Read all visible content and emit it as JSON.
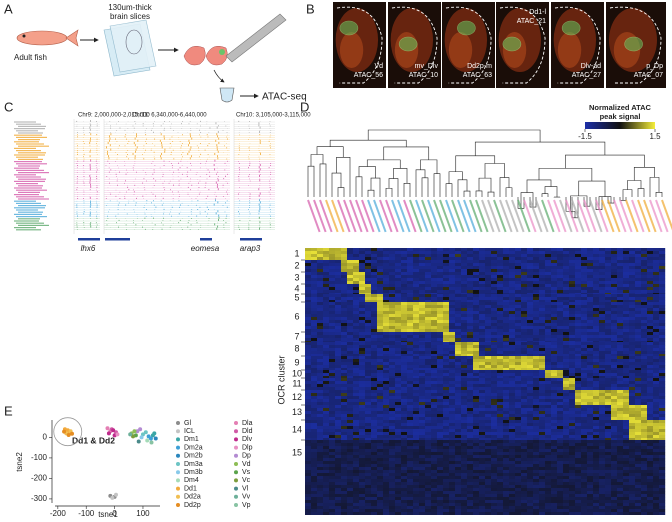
{
  "panel_labels": [
    "A",
    "B",
    "C",
    "D",
    "E"
  ],
  "panel_a": {
    "organism": "Adult fish",
    "slices": [
      "130um-thick",
      "brain slices"
    ],
    "assay": "ATAC-seq"
  },
  "panel_b": {
    "images": [
      {
        "region": "Vd",
        "sample": "ATAC_56"
      },
      {
        "region": "mv_Dlv",
        "sample": "ATAC_10"
      },
      {
        "region": "Dd2p-m",
        "sample": "ATAC_63"
      },
      {
        "region": "Dd1-l",
        "sample": "ATAC_21"
      },
      {
        "region": "Dlv-ad",
        "sample": "ATAC_27"
      },
      {
        "region": "p_Dp",
        "sample": "ATAC_07"
      }
    ]
  },
  "panel_c": {
    "loci": [
      "Chr9: 2,000,000-2,015,000",
      "Chr11: 6,340,000-6,440,000",
      "Chr10: 3,105,000-3,115,000"
    ],
    "genes": [
      "lhx6",
      "eomesa",
      "arap3"
    ]
  },
  "panel_d": {
    "colorbar_title": [
      "Normalized ATAC",
      "peak signal"
    ],
    "colorbar_range": [
      -1.5,
      1.5
    ],
    "colorbar_ticks": [
      -1.5,
      1.5
    ],
    "y_label": "OCR cluster",
    "clusters": [
      1,
      2,
      3,
      4,
      5,
      6,
      7,
      8,
      9,
      10,
      11,
      12,
      13,
      14,
      15
    ]
  },
  "chart_data": {
    "type": "scatter",
    "x_label": "tsne1",
    "y_label": "tsne2",
    "annotation": "Dd1 & Dd2",
    "xlim": [
      -210,
      160
    ],
    "ylim": [
      -320,
      85
    ],
    "xticks": [
      -200,
      -100,
      0,
      100
    ],
    "yticks": [
      0,
      -100,
      -200,
      -300
    ],
    "series": [
      {
        "name": "Gl",
        "color": "#8c8c8c",
        "x": [
          -15,
          0
        ],
        "y": [
          -285,
          -290
        ]
      },
      {
        "name": "ICL",
        "color": "#c4c4c4",
        "x": [
          5,
          -8
        ],
        "y": [
          -280,
          -295
        ]
      },
      {
        "name": "Dm1",
        "color": "#3aa6a6",
        "x": [
          140,
          135
        ],
        "y": [
          20,
          10
        ]
      },
      {
        "name": "Dm2a",
        "color": "#3d9fd6",
        "x": [
          120,
          128
        ],
        "y": [
          5,
          -5
        ]
      },
      {
        "name": "Dm2b",
        "color": "#2a86bd",
        "x": [
          145
        ],
        "y": [
          -5
        ]
      },
      {
        "name": "Dm3a",
        "color": "#6cc4c4",
        "x": [
          110,
          100
        ],
        "y": [
          25,
          15
        ]
      },
      {
        "name": "Dm3b",
        "color": "#88c9ea",
        "x": [
          95
        ],
        "y": [
          0
        ]
      },
      {
        "name": "Dm4",
        "color": "#a5dbb8",
        "x": [
          115
        ],
        "y": [
          -15
        ]
      },
      {
        "name": "Dd1",
        "color": "#f2a93b",
        "x": [
          -175,
          -165,
          -160
        ],
        "y": [
          40,
          35,
          25
        ]
      },
      {
        "name": "Dd2a",
        "color": "#f1bf52",
        "x": [
          -170,
          -155
        ],
        "y": [
          20,
          30
        ]
      },
      {
        "name": "Dd2p",
        "color": "#e58d22",
        "x": [
          -150,
          -162,
          -178
        ],
        "y": [
          18,
          12,
          28
        ]
      },
      {
        "name": "Dla",
        "color": "#e47fb4",
        "x": [
          -25,
          -15
        ],
        "y": [
          45,
          30
        ]
      },
      {
        "name": "Dld",
        "color": "#d15aa6",
        "x": [
          -10,
          5
        ],
        "y": [
          40,
          25
        ]
      },
      {
        "name": "Dlv",
        "color": "#bf2b8c",
        "x": [
          -20,
          0,
          -5
        ],
        "y": [
          20,
          10,
          35
        ]
      },
      {
        "name": "Dlp",
        "color": "#e991c4",
        "x": [
          10
        ],
        "y": [
          15
        ]
      },
      {
        "name": "Dp",
        "color": "#b38bd2",
        "x": [
          80,
          90
        ],
        "y": [
          30,
          40
        ]
      },
      {
        "name": "Vd",
        "color": "#8dbd55",
        "x": [
          60,
          70
        ],
        "y": [
          20,
          30
        ]
      },
      {
        "name": "Vs",
        "color": "#5aa34b",
        "x": [
          75
        ],
        "y": [
          10
        ]
      },
      {
        "name": "Vc",
        "color": "#7c9c3c",
        "x": [
          65
        ],
        "y": [
          5
        ]
      },
      {
        "name": "Vl",
        "color": "#4a8a8a",
        "x": [
          85
        ],
        "y": [
          -20
        ]
      },
      {
        "name": "Vv",
        "color": "#6db09a",
        "x": [
          55
        ],
        "y": [
          15
        ]
      },
      {
        "name": "Vp",
        "color": "#88c3a3",
        "x": [
          130
        ],
        "y": [
          -25
        ]
      }
    ]
  }
}
